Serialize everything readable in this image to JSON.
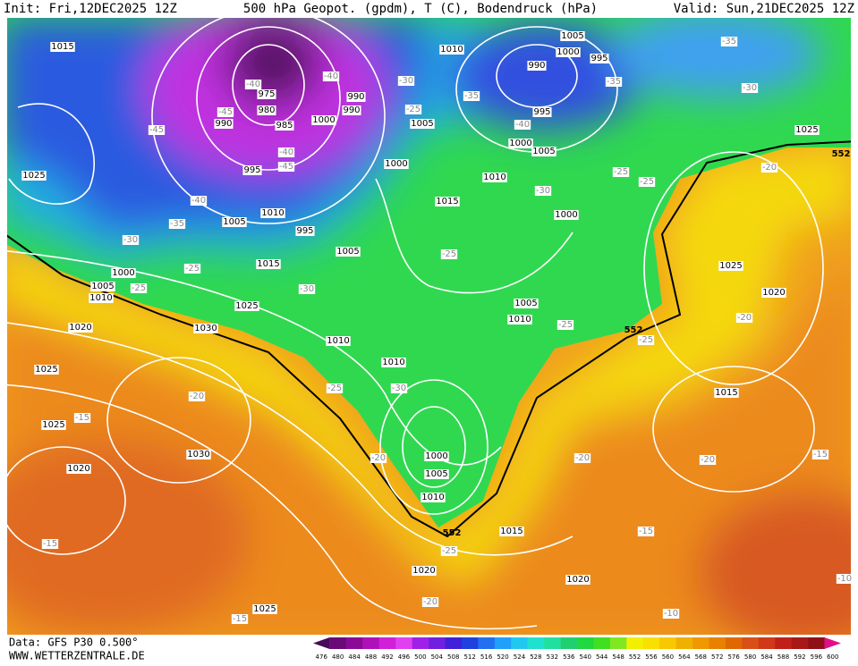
{
  "header": {
    "init": "Init: Fri,12DEC2025 12Z",
    "title": "500 hPa Geopot. (gpdm), T (C), Bodendruck (hPa)",
    "valid": "Valid: Sun,21DEC2025 12Z"
  },
  "footer": {
    "data": "Data: GFS P30 0.500°",
    "site": "WWW.WETTERZENTRALE.DE"
  },
  "colorbar": {
    "labels": [
      476,
      480,
      484,
      488,
      492,
      496,
      500,
      504,
      508,
      512,
      516,
      520,
      524,
      528,
      532,
      536,
      540,
      544,
      548,
      552,
      556,
      560,
      564,
      568,
      572,
      576,
      580,
      584,
      588,
      592,
      596,
      600
    ],
    "colors": [
      "#4a0a5a",
      "#6a0a78",
      "#8a0a96",
      "#b010b8",
      "#d020d8",
      "#e040f0",
      "#a020e8",
      "#7020e0",
      "#4020d8",
      "#2040e0",
      "#2070f0",
      "#20a0f8",
      "#20c8f0",
      "#20e0d0",
      "#20e0a0",
      "#20d070",
      "#20d840",
      "#40e020",
      "#80e820",
      "#f0f000",
      "#f8e000",
      "#f8c800",
      "#f0b000",
      "#f09800",
      "#e88000",
      "#e06800",
      "#d85018",
      "#d03818",
      "#c02018",
      "#a81818",
      "#901018",
      "#e0108a"
    ]
  },
  "map": {
    "pressure_labels": [
      1015,
      1010,
      1005,
      1000,
      995,
      990,
      975,
      980,
      990,
      990,
      985,
      990,
      1000,
      1005,
      995,
      1000,
      1005,
      1025,
      1000,
      1025,
      995,
      1010,
      1010,
      1005,
      995,
      1015,
      1000,
      1005,
      1015,
      1025,
      1000,
      1005,
      1010,
      1020,
      1025,
      1005,
      1010,
      1020,
      1030,
      1010,
      1010,
      1025,
      1015,
      1025,
      1000,
      1030,
      1005,
      1020,
      1010,
      1015,
      1020,
      1020,
      1025
    ],
    "temperature_labels": [
      -35,
      -30,
      -35,
      -35,
      -30,
      -40,
      -40,
      -45,
      -45,
      -25,
      -40,
      -40,
      -45,
      -25,
      -25,
      -20,
      -30,
      -40,
      -35,
      -30,
      -25,
      -25,
      -30,
      -25,
      -20,
      -25,
      -25,
      -25,
      -30,
      -20,
      -15,
      -20,
      -20,
      -20,
      -15,
      -25,
      -15,
      -15,
      -20,
      -15,
      -10,
      -10
    ],
    "geopotential_labels": [
      552,
      552,
      552
    ]
  }
}
